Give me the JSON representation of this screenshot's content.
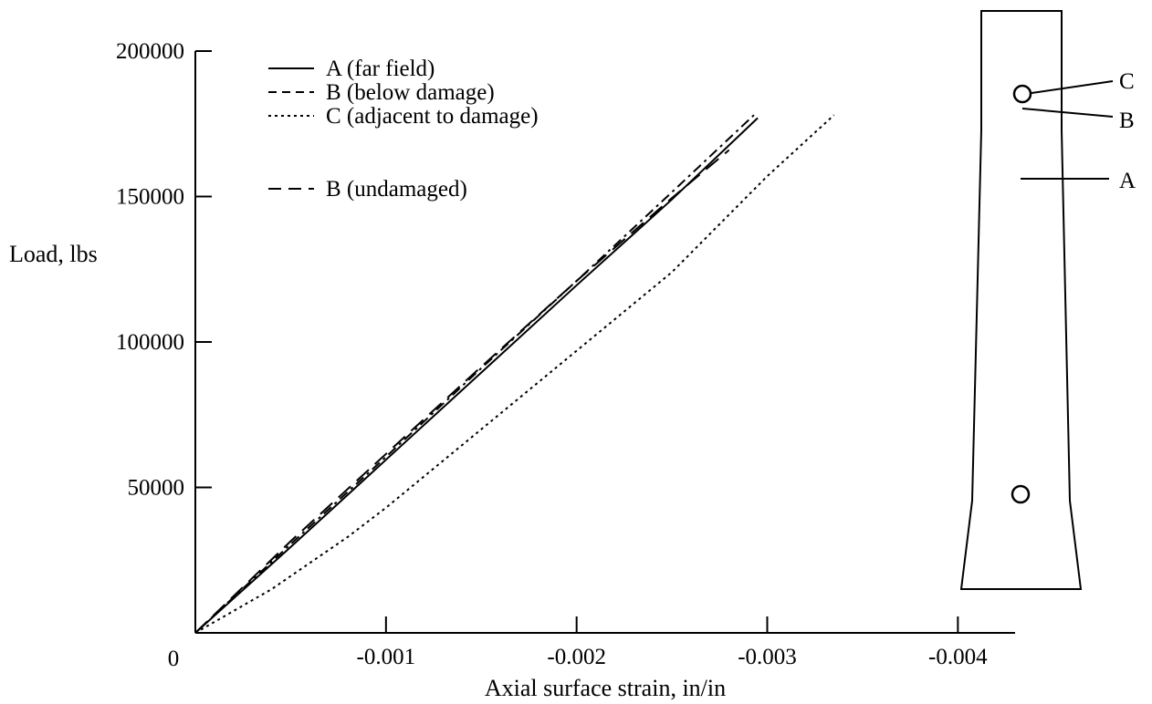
{
  "chart_data": {
    "type": "line",
    "title": "",
    "xlabel": "Axial surface strain, in/in",
    "ylabel": "Load, lbs",
    "xlim": [
      0,
      -0.0043
    ],
    "ylim": [
      0,
      200000
    ],
    "x_tick_labels": [
      "0",
      "-0.001",
      "-0.002",
      "-0.003",
      "-0.004"
    ],
    "x_tick_values": [
      0,
      -0.001,
      -0.002,
      -0.003,
      -0.004
    ],
    "y_tick_labels": [
      "200000",
      "150000",
      "100000",
      "50000"
    ],
    "y_tick_values": [
      200000,
      150000,
      100000,
      50000
    ],
    "grid": false,
    "legend_position": "top-left",
    "series": [
      {
        "name": "A (far field)",
        "style": "solid",
        "points": [
          [
            0,
            0
          ],
          [
            -0.0005,
            29500
          ],
          [
            -0.001,
            59500
          ],
          [
            -0.0015,
            89500
          ],
          [
            -0.002,
            119500
          ],
          [
            -0.0025,
            149000
          ],
          [
            -0.00295,
            177000
          ]
        ]
      },
      {
        "name": "B (below damage)",
        "style": "dashdot",
        "points": [
          [
            0,
            0
          ],
          [
            -0.0005,
            30500
          ],
          [
            -0.001,
            60500
          ],
          [
            -0.0015,
            91000
          ],
          [
            -0.002,
            121000
          ],
          [
            -0.0025,
            151500
          ],
          [
            -0.00293,
            178000
          ]
        ]
      },
      {
        "name": "C (adjacent to damage)",
        "style": "dotted",
        "points": [
          [
            0,
            0
          ],
          [
            -0.0004,
            15000
          ],
          [
            -0.0008,
            33000
          ],
          [
            -0.001,
            43000
          ],
          [
            -0.0015,
            70000
          ],
          [
            -0.002,
            97000
          ],
          [
            -0.0025,
            124000
          ],
          [
            -0.003,
            157000
          ],
          [
            -0.00335,
            178000
          ]
        ]
      },
      {
        "name": "B (undamaged)",
        "style": "dashed",
        "points": [
          [
            0,
            0
          ],
          [
            -0.0005,
            31500
          ],
          [
            -0.001,
            61500
          ],
          [
            -0.0015,
            91500
          ],
          [
            -0.002,
            121000
          ],
          [
            -0.0025,
            149500
          ],
          [
            -0.0028,
            166000
          ]
        ]
      }
    ]
  },
  "specimen": {
    "labels": [
      "C",
      "B",
      "A"
    ]
  }
}
